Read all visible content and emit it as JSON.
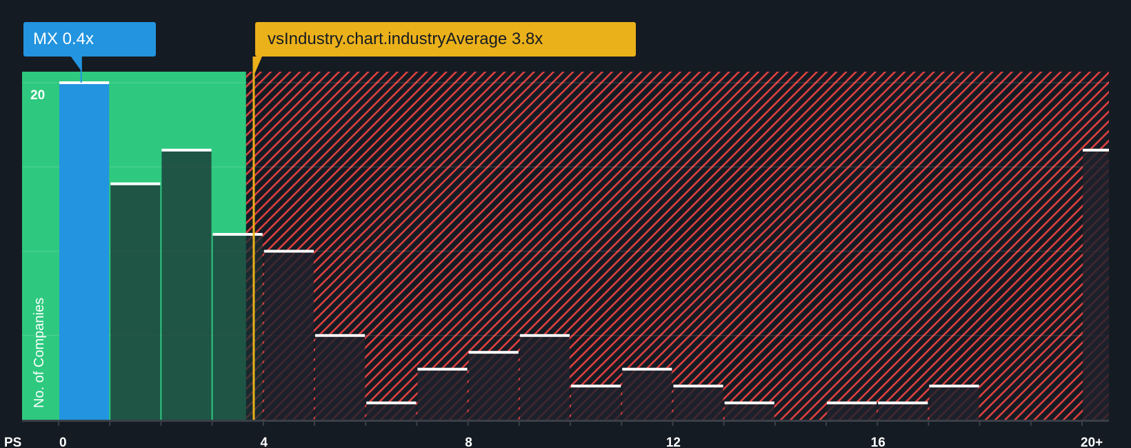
{
  "chart_data": {
    "type": "bar",
    "title": "",
    "xlabel": "PS",
    "ylabel": "No. of Companies",
    "categories": [
      "0-1",
      "1-2",
      "2-3",
      "3-4",
      "4-5",
      "5-6",
      "6-7",
      "7-8",
      "8-9",
      "9-10",
      "10-11",
      "11-12",
      "12-13",
      "13-14",
      "14-15",
      "15-16",
      "16-17",
      "17-18",
      "18-19",
      "19-20",
      "20+"
    ],
    "values": [
      20,
      14,
      16,
      11,
      10,
      5,
      1,
      3,
      4,
      5,
      2,
      3,
      2,
      1,
      0,
      1,
      1,
      2,
      0,
      0,
      16
    ],
    "x_ticks": [
      "0",
      "4",
      "8",
      "12",
      "16",
      "20+"
    ],
    "x_tick_values": [
      0,
      4,
      8,
      12,
      16,
      20
    ],
    "y_ticks": [
      "20"
    ],
    "ylim": [
      0,
      20.7
    ],
    "gridlines_every": 5,
    "company": {
      "label": "MX 0.4x",
      "value": 0.4
    },
    "industry_average": {
      "label": "vsIndustry.chart.industryAverage 3.8x",
      "value": 3.8
    },
    "fair_region_end": 3.65,
    "colors": {
      "company": "#2394df",
      "fair": "#2ec97f",
      "industry": "#ebb11a",
      "hatch": "#e04040",
      "background": "#151b23"
    }
  }
}
